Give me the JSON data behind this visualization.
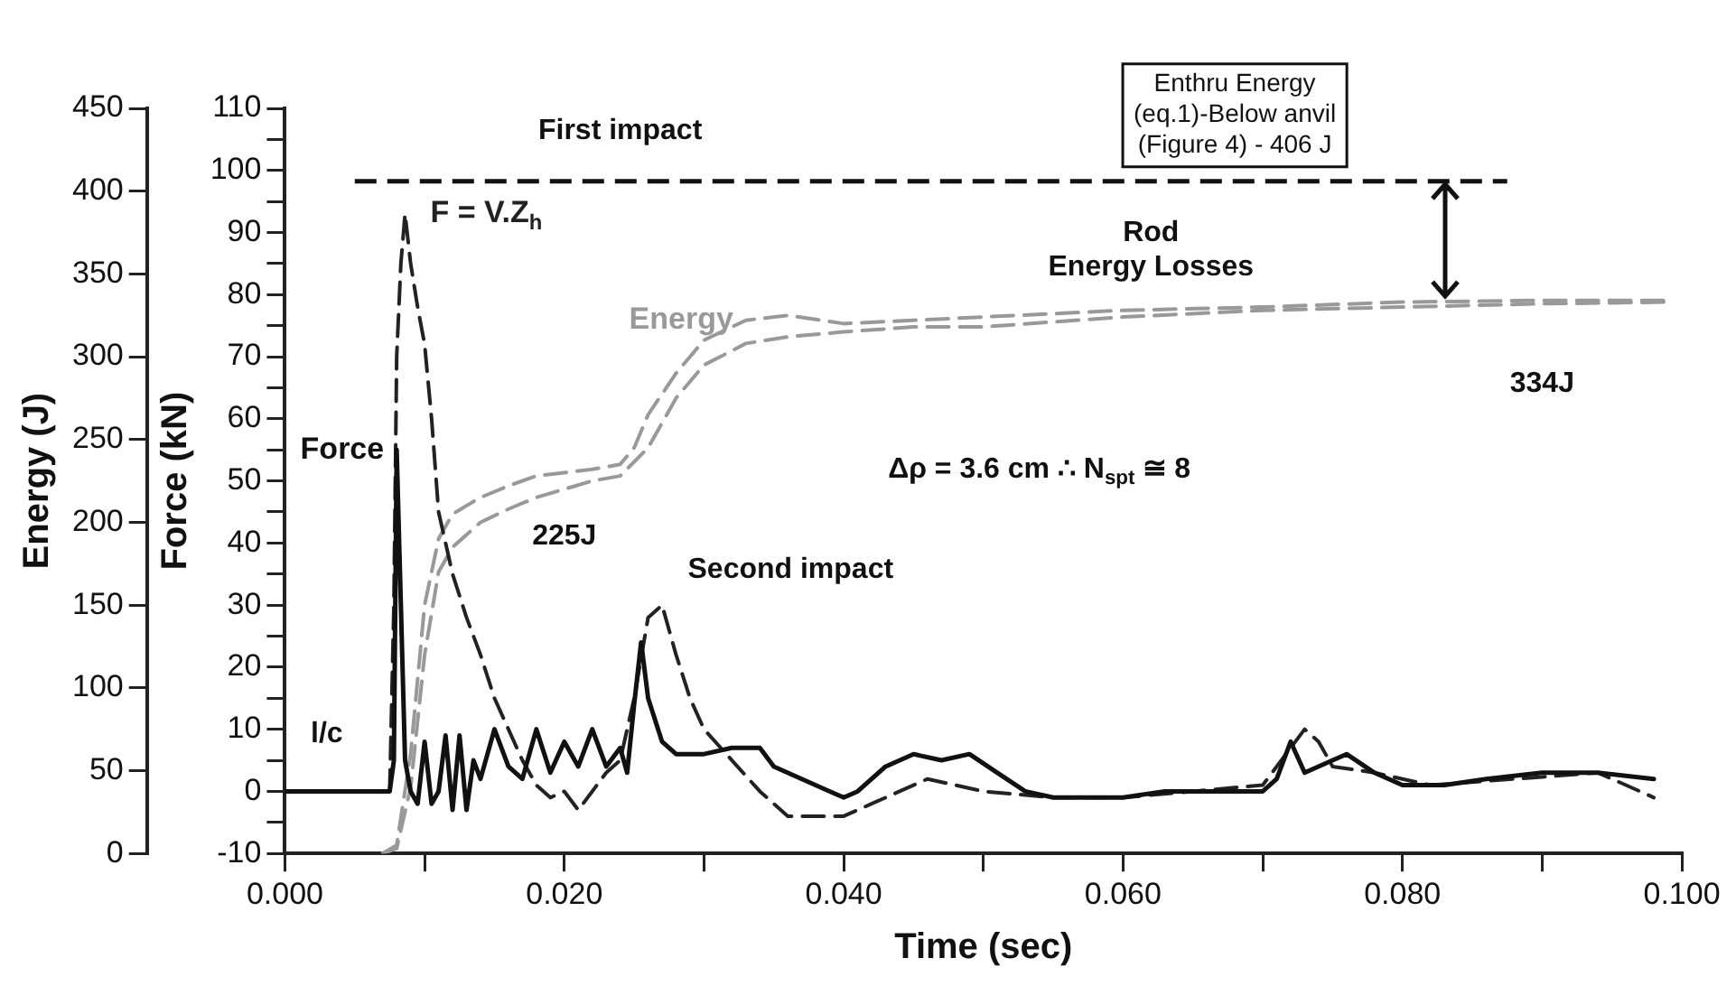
{
  "chart_data": {
    "type": "line",
    "xlabel": "Time (sec)",
    "ylabel": "Force (kN)",
    "y2label": "Energy (J)",
    "xlim": [
      0,
      0.1
    ],
    "xticks": [
      {
        "value": 0,
        "label": "0.000"
      },
      {
        "value": 0.01,
        "label": null
      },
      {
        "value": 0.02,
        "label": "0.020"
      },
      {
        "value": 0.03,
        "label": null
      },
      {
        "value": 0.04,
        "label": "0.040"
      },
      {
        "value": 0.05,
        "label": null
      },
      {
        "value": 0.06,
        "label": "0.060"
      },
      {
        "value": 0.07,
        "label": null
      },
      {
        "value": 0.08,
        "label": "0.080"
      },
      {
        "value": 0.09,
        "label": null
      },
      {
        "value": 0.1,
        "label": "0.100"
      }
    ],
    "ylim": [
      -10,
      110
    ],
    "yticks": [
      -10,
      {
        "value": -5,
        "label": null
      },
      0,
      {
        "value": 5,
        "label": null
      },
      10,
      {
        "value": 15,
        "label": null
      },
      20,
      {
        "value": 25,
        "label": null
      },
      30,
      {
        "value": 35,
        "label": null
      },
      40,
      {
        "value": 45,
        "label": null
      },
      50,
      {
        "value": 55,
        "label": null
      },
      60,
      {
        "value": 65,
        "label": null
      },
      70,
      {
        "value": 75,
        "label": null
      },
      80,
      {
        "value": 85,
        "label": null
      },
      90,
      {
        "value": 95,
        "label": null
      },
      100,
      {
        "value": 105,
        "label": null
      },
      110
    ],
    "y2lim": [
      0,
      450
    ],
    "y2ticks": [
      0,
      50,
      100,
      150,
      200,
      250,
      300,
      350,
      400,
      450
    ],
    "grid": false,
    "legend": false,
    "marker": "none",
    "series": [
      {
        "name": "Force",
        "color": "#111111",
        "line_style": "solid",
        "x": [
          0,
          0.0075,
          0.0078,
          0.008,
          0.0083,
          0.0086,
          0.009,
          0.0095,
          0.01,
          0.0105,
          0.011,
          0.0115,
          0.012,
          0.0125,
          0.013,
          0.0135,
          0.014,
          0.015,
          0.016,
          0.017,
          0.018,
          0.019,
          0.02,
          0.021,
          0.022,
          0.023,
          0.024,
          0.0245,
          0.025,
          0.0255,
          0.026,
          0.027,
          0.028,
          0.03,
          0.032,
          0.034,
          0.035,
          0.037,
          0.039,
          0.04,
          0.041,
          0.043,
          0.045,
          0.047,
          0.049,
          0.051,
          0.053,
          0.055,
          0.058,
          0.06,
          0.063,
          0.066,
          0.07,
          0.071,
          0.072,
          0.073,
          0.075,
          0.076,
          0.078,
          0.08,
          0.083,
          0.086,
          0.09,
          0.094,
          0.098
        ],
        "values": [
          0,
          0,
          5,
          55,
          30,
          5,
          0,
          -2,
          8,
          -2,
          0,
          9,
          -3,
          9,
          -3,
          5,
          2,
          10,
          4,
          2,
          10,
          3,
          8,
          4,
          10,
          4,
          7,
          3,
          14,
          24,
          15,
          8,
          6,
          6,
          7,
          7,
          4,
          2,
          0,
          -1,
          0,
          4,
          6,
          5,
          6,
          3,
          0,
          -1,
          -1,
          -1,
          0,
          0,
          0,
          2,
          8,
          3,
          5,
          6,
          3,
          1,
          1,
          2,
          3,
          3,
          2
        ]
      },
      {
        "name": "F = V.Z$_{h}$",
        "color": "#222222",
        "line_style": "dashed",
        "x": [
          0.0075,
          0.0078,
          0.008,
          0.0083,
          0.0086,
          0.009,
          0.0095,
          0.01,
          0.0105,
          0.011,
          0.0115,
          0.012,
          0.013,
          0.014,
          0.015,
          0.016,
          0.017,
          0.018,
          0.019,
          0.02,
          0.021,
          0.022,
          0.023,
          0.024,
          0.025,
          0.026,
          0.027,
          0.028,
          0.029,
          0.03,
          0.032,
          0.034,
          0.036,
          0.038,
          0.04,
          0.042,
          0.044,
          0.046,
          0.048,
          0.05,
          0.055,
          0.06,
          0.065,
          0.07,
          0.072,
          0.073,
          0.074,
          0.075,
          0.078,
          0.082,
          0.088,
          0.094,
          0.098
        ],
        "values": [
          0,
          30,
          70,
          85,
          93,
          85,
          78,
          72,
          60,
          45,
          40,
          35,
          28,
          22,
          15,
          10,
          5,
          1,
          -1,
          0,
          -3,
          0,
          3,
          5,
          15,
          28,
          30,
          22,
          15,
          10,
          5,
          0,
          -4,
          -4,
          -4,
          -2,
          0,
          2,
          1,
          0,
          -1,
          -1,
          0,
          1,
          7,
          10,
          8,
          4,
          3,
          1,
          2,
          3,
          -1
        ]
      },
      {
        "name": "Energy",
        "color": "#999999",
        "line_style": "dashed",
        "axis": "y2",
        "x": [
          0.007,
          0.008,
          0.009,
          0.01,
          0.011,
          0.012,
          0.014,
          0.016,
          0.018,
          0.02,
          0.022,
          0.024,
          0.025,
          0.026,
          0.028,
          0.03,
          0.033,
          0.036,
          0.04,
          0.045,
          0.05,
          0.06,
          0.07,
          0.08,
          0.09,
          0.099
        ],
        "values": [
          0,
          5,
          60,
          150,
          190,
          205,
          215,
          222,
          228,
          230,
          232,
          235,
          245,
          265,
          290,
          310,
          322,
          325,
          320,
          322,
          324,
          328,
          330,
          333,
          334,
          334
        ]
      },
      {
        "color": "#999999",
        "line_style": "dashed",
        "axis": "y2",
        "x": [
          0.007,
          0.008,
          0.009,
          0.01,
          0.011,
          0.012,
          0.014,
          0.016,
          0.018,
          0.02,
          0.022,
          0.024,
          0.026,
          0.028,
          0.03,
          0.033,
          0.036,
          0.04,
          0.045,
          0.05,
          0.06,
          0.07,
          0.08,
          0.09,
          0.099
        ],
        "values": [
          0,
          3,
          40,
          120,
          170,
          185,
          200,
          208,
          215,
          220,
          225,
          228,
          245,
          275,
          295,
          308,
          312,
          315,
          318,
          318,
          324,
          328,
          330,
          332,
          333
        ]
      }
    ],
    "ref_lines": [
      {
        "axis": "y2",
        "value": 406,
        "label": "Enthru Energy\n(eq.1)-Below anvil\n(Figure 4) - 406 J",
        "color": "#111111",
        "line_style": "dashed"
      }
    ],
    "annotations": [
      "First impact",
      "Second impact",
      "225J",
      "l/c",
      "Δρ = 3.6 cm ∴ N$_{spt}$ ≅ 8",
      "334J",
      "Rod\nEnergy Losses"
    ]
  }
}
